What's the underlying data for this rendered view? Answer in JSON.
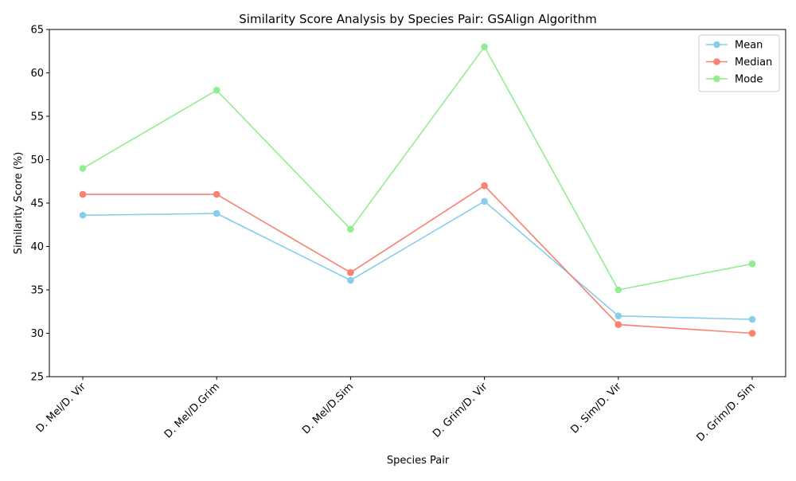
{
  "chart_data": {
    "type": "line",
    "title": "Similarity Score Analysis by Species Pair: GSAlign Algorithm",
    "xlabel": "Species Pair",
    "ylabel": "Similarity Score (%)",
    "categories": [
      "D. Mel/D. Vir",
      "D. Mel/D.Grim",
      "D. Mel/D.Sim",
      "D. Grim/D. Vir",
      "D. Sim/D. Vir",
      "D. Grim/D. Sim"
    ],
    "ylim": [
      25,
      65
    ],
    "yticks": [
      25,
      30,
      35,
      40,
      45,
      50,
      55,
      60,
      65
    ],
    "grid": false,
    "legend_position": "top-right",
    "series": [
      {
        "name": "Mean",
        "color": "#87CEEB",
        "values": [
          43.6,
          43.8,
          36.1,
          45.2,
          32.0,
          31.6
        ]
      },
      {
        "name": "Median",
        "color": "#FA8072",
        "values": [
          46,
          46,
          37,
          47,
          31,
          30
        ]
      },
      {
        "name": "Mode",
        "color": "#90EE90",
        "values": [
          49,
          58,
          42,
          63,
          35,
          38
        ]
      }
    ]
  }
}
